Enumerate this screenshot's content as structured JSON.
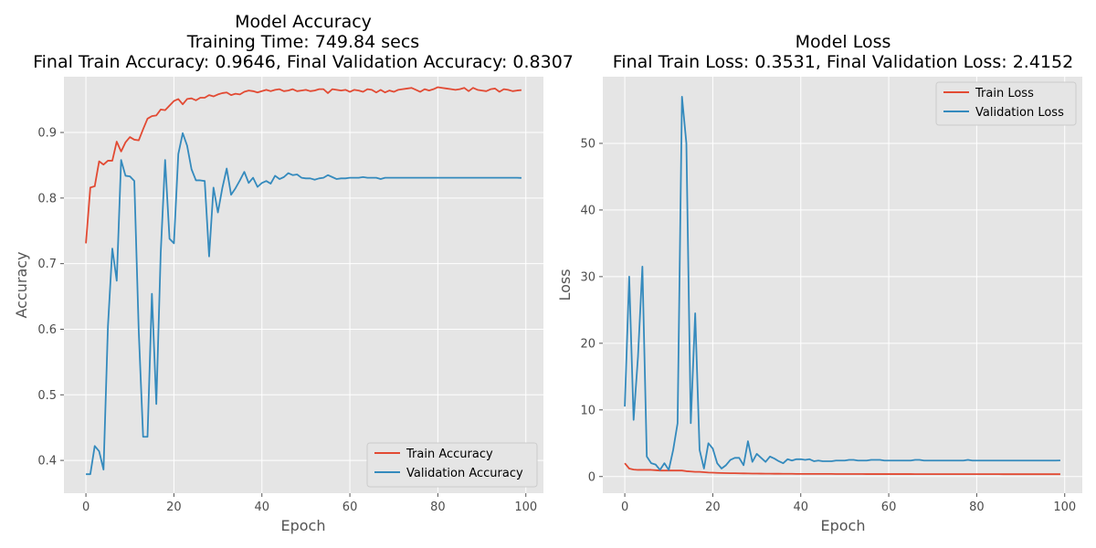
{
  "chart_data": [
    {
      "type": "line",
      "title": "Model Accuracy\nTraining Time: 749.84 secs\nFinal Train Accuracy: 0.9646, Final Validation Accuracy: 0.8307",
      "title_lines": [
        "Model Accuracy",
        "Training Time: 749.84 secs",
        "Final Train Accuracy: 0.9646, Final Validation Accuracy: 0.8307"
      ],
      "xlabel": "Epoch",
      "ylabel": "Accuracy",
      "xlim": [
        -5,
        104
      ],
      "ylim": [
        0.35,
        0.985
      ],
      "xticks": [
        0,
        20,
        40,
        60,
        80,
        100
      ],
      "yticks": [
        0.4,
        0.5,
        0.6,
        0.7,
        0.8,
        0.9
      ],
      "xtick_labels": [
        "0",
        "20",
        "40",
        "60",
        "80",
        "100"
      ],
      "ytick_labels": [
        "0.4",
        "0.5",
        "0.6",
        "0.7",
        "0.8",
        "0.9"
      ],
      "grid": true,
      "legend": "lower-right",
      "series": [
        {
          "name": "Train Accuracy",
          "color": "#E24A33",
          "values": [
            0.731,
            0.816,
            0.818,
            0.856,
            0.851,
            0.857,
            0.857,
            0.886,
            0.871,
            0.885,
            0.893,
            0.889,
            0.888,
            0.905,
            0.921,
            0.925,
            0.926,
            0.935,
            0.934,
            0.941,
            0.948,
            0.951,
            0.943,
            0.951,
            0.952,
            0.949,
            0.953,
            0.953,
            0.957,
            0.955,
            0.958,
            0.96,
            0.961,
            0.957,
            0.959,
            0.958,
            0.962,
            0.964,
            0.963,
            0.961,
            0.963,
            0.965,
            0.963,
            0.965,
            0.966,
            0.963,
            0.964,
            0.966,
            0.963,
            0.964,
            0.965,
            0.963,
            0.964,
            0.966,
            0.966,
            0.96,
            0.966,
            0.965,
            0.964,
            0.965,
            0.962,
            0.965,
            0.964,
            0.962,
            0.966,
            0.965,
            0.961,
            0.965,
            0.961,
            0.964,
            0.962,
            0.965,
            0.966,
            0.967,
            0.968,
            0.965,
            0.962,
            0.966,
            0.964,
            0.966,
            0.969,
            0.968,
            0.967,
            0.966,
            0.965,
            0.966,
            0.968,
            0.963,
            0.968,
            0.965,
            0.964,
            0.963,
            0.966,
            0.967,
            0.962,
            0.966,
            0.965,
            0.963,
            0.964,
            0.9646
          ]
        },
        {
          "name": "Validation Accuracy",
          "color": "#348ABD",
          "values": [
            0.379,
            0.379,
            0.422,
            0.414,
            0.386,
            0.604,
            0.723,
            0.674,
            0.858,
            0.834,
            0.833,
            0.826,
            0.598,
            0.436,
            0.436,
            0.654,
            0.486,
            0.716,
            0.858,
            0.738,
            0.731,
            0.867,
            0.899,
            0.88,
            0.844,
            0.827,
            0.827,
            0.826,
            0.711,
            0.816,
            0.778,
            0.815,
            0.845,
            0.805,
            0.815,
            0.827,
            0.84,
            0.823,
            0.831,
            0.817,
            0.823,
            0.826,
            0.822,
            0.834,
            0.829,
            0.832,
            0.838,
            0.835,
            0.836,
            0.831,
            0.83,
            0.83,
            0.828,
            0.83,
            0.831,
            0.835,
            0.832,
            0.829,
            0.83,
            0.83,
            0.831,
            0.831,
            0.831,
            0.832,
            0.831,
            0.831,
            0.831,
            0.829,
            0.831,
            0.831,
            0.831,
            0.831,
            0.831,
            0.831,
            0.831,
            0.831,
            0.831,
            0.831,
            0.831,
            0.831,
            0.831,
            0.831,
            0.831,
            0.831,
            0.831,
            0.831,
            0.831,
            0.831,
            0.831,
            0.831,
            0.831,
            0.831,
            0.831,
            0.831,
            0.831,
            0.831,
            0.831,
            0.831,
            0.831,
            0.8307
          ]
        }
      ]
    },
    {
      "type": "line",
      "title": "Model Loss\nFinal Train Loss: 0.3531, Final Validation Loss: 2.4152",
      "title_lines": [
        "Model Loss",
        "Final Train Loss: 0.3531, Final Validation Loss: 2.4152"
      ],
      "xlabel": "Epoch",
      "ylabel": "Loss",
      "xlim": [
        -5,
        104
      ],
      "ylim": [
        -2.5,
        60
      ],
      "xticks": [
        0,
        20,
        40,
        60,
        80,
        100
      ],
      "yticks": [
        0,
        10,
        20,
        30,
        40,
        50
      ],
      "xtick_labels": [
        "0",
        "20",
        "40",
        "60",
        "80",
        "100"
      ],
      "ytick_labels": [
        "0",
        "10",
        "20",
        "30",
        "40",
        "50"
      ],
      "grid": true,
      "legend": "upper-right",
      "series": [
        {
          "name": "Train Loss",
          "color": "#E24A33",
          "values": [
            2.0,
            1.2,
            1.05,
            1.0,
            1.0,
            1.0,
            1.0,
            0.95,
            0.9,
            0.9,
            0.9,
            0.9,
            0.9,
            0.9,
            0.8,
            0.75,
            0.7,
            0.7,
            0.65,
            0.6,
            0.58,
            0.55,
            0.53,
            0.52,
            0.5,
            0.5,
            0.48,
            0.47,
            0.46,
            0.45,
            0.45,
            0.44,
            0.43,
            0.43,
            0.42,
            0.42,
            0.41,
            0.41,
            0.41,
            0.4,
            0.4,
            0.4,
            0.4,
            0.39,
            0.39,
            0.39,
            0.39,
            0.39,
            0.38,
            0.38,
            0.38,
            0.38,
            0.38,
            0.38,
            0.38,
            0.37,
            0.37,
            0.37,
            0.37,
            0.37,
            0.37,
            0.37,
            0.37,
            0.37,
            0.37,
            0.37,
            0.36,
            0.36,
            0.36,
            0.36,
            0.36,
            0.36,
            0.36,
            0.36,
            0.36,
            0.36,
            0.36,
            0.36,
            0.36,
            0.36,
            0.36,
            0.36,
            0.36,
            0.36,
            0.36,
            0.36,
            0.355,
            0.355,
            0.355,
            0.355,
            0.355,
            0.355,
            0.355,
            0.355,
            0.355,
            0.355,
            0.355,
            0.355,
            0.355,
            0.3531
          ]
        },
        {
          "name": "Validation Loss",
          "color": "#348ABD",
          "values": [
            10.5,
            30.0,
            8.5,
            18.0,
            31.5,
            3.0,
            2.0,
            1.8,
            1.0,
            2.0,
            1.0,
            4.0,
            8.0,
            57.0,
            50.0,
            8.0,
            24.5,
            4.0,
            1.2,
            5.0,
            4.2,
            2.0,
            1.2,
            1.7,
            2.5,
            2.8,
            2.8,
            1.7,
            5.3,
            2.2,
            3.4,
            2.8,
            2.2,
            3.0,
            2.7,
            2.3,
            2.0,
            2.6,
            2.4,
            2.6,
            2.6,
            2.5,
            2.6,
            2.3,
            2.4,
            2.3,
            2.3,
            2.3,
            2.4,
            2.4,
            2.4,
            2.5,
            2.5,
            2.4,
            2.4,
            2.4,
            2.5,
            2.5,
            2.5,
            2.4,
            2.4,
            2.4,
            2.4,
            2.4,
            2.4,
            2.4,
            2.5,
            2.5,
            2.4,
            2.4,
            2.4,
            2.4,
            2.4,
            2.4,
            2.4,
            2.4,
            2.4,
            2.4,
            2.5,
            2.4,
            2.4,
            2.4,
            2.4,
            2.4,
            2.4,
            2.4,
            2.4,
            2.4,
            2.4,
            2.4,
            2.4,
            2.4,
            2.4,
            2.4,
            2.4,
            2.4,
            2.4,
            2.4,
            2.4,
            2.4152
          ]
        }
      ]
    }
  ]
}
